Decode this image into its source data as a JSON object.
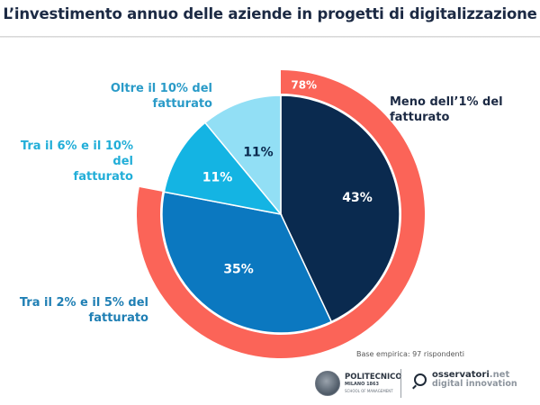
{
  "chart_data": {
    "type": "pie",
    "title": "L’investimento annuo delle aziende in progetti di digitalizzazione",
    "slices": [
      {
        "label_line1": "Meno dell’1% del",
        "label_line2": "fatturato",
        "value": 43,
        "value_label": "43%",
        "color": "#0a2a4f",
        "text_color": "#ffffff",
        "label_color": "#1c2a44"
      },
      {
        "label_line1": "Tra il 2% e il 5% del",
        "label_line2": "fatturato",
        "value": 35,
        "value_label": "35%",
        "color": "#0b78c0",
        "text_color": "#ffffff",
        "label_color": "#1f7fb4"
      },
      {
        "label_line1": "Tra il 6% e il 10% del",
        "label_line2": "fatturato",
        "value": 11,
        "value_label": "11%",
        "color": "#14b4e3",
        "text_color": "#ffffff",
        "label_color": "#22aed8"
      },
      {
        "label_line1": "Oltre il 10% del",
        "label_line2": "fatturato",
        "value": 11,
        "value_label": "11%",
        "color": "#92dff5",
        "text_color": "#0a2a4f",
        "label_color": "#2a9bc8"
      }
    ],
    "outer_ring": {
      "value": 78,
      "value_label": "78%",
      "color": "#fb6458",
      "text_color": "#ffffff",
      "description": "Meno dell’1% + Tra il 2% e il 5%"
    },
    "start_angle": "12 o'clock",
    "direction": "clockwise"
  },
  "footer": {
    "base_note": "Base empirica: 97 rispondenti",
    "logo_politecnico": {
      "name": "POLITECNICO",
      "sub": "MILANO 1863",
      "school": "SCHOOL OF MANAGEMENT"
    },
    "logo_osservatori": {
      "name": "osservatori",
      "tld": ".net",
      "sub": "digital innovation"
    }
  }
}
